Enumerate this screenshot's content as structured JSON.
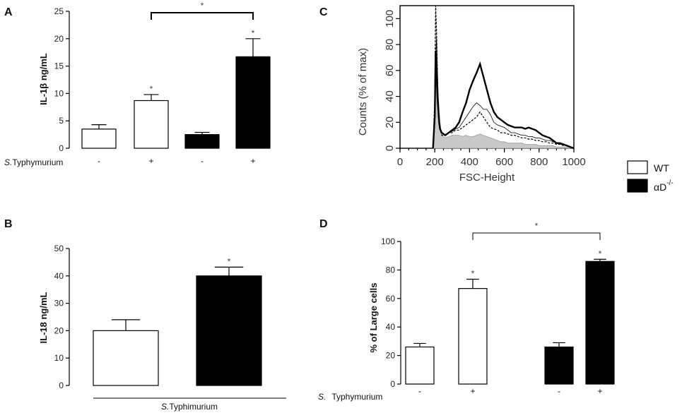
{
  "legend": {
    "items": [
      {
        "label": "WT",
        "color": "#ffffff"
      },
      {
        "label": "αD",
        "sup": "-/-",
        "color": "#000000"
      }
    ]
  },
  "chart_data": [
    {
      "panel": "A",
      "type": "bar",
      "ylabel": "IL-1β ng/mL",
      "ylim": [
        0,
        25
      ],
      "yticks": [
        "0",
        "5",
        "10",
        "15",
        "20",
        "25"
      ],
      "xlabel_prefix": "S.",
      "xlabel": "Typhymurium",
      "categories": [
        "-",
        "+",
        "-",
        "+"
      ],
      "bars": [
        {
          "value": 3.5,
          "error": 0.8,
          "group": "WT",
          "sig": ""
        },
        {
          "value": 8.7,
          "error": 1.1,
          "group": "WT",
          "sig": "*"
        },
        {
          "value": 2.5,
          "error": 0.4,
          "group": "αD-/-",
          "sig": ""
        },
        {
          "value": 16.7,
          "error": 3.3,
          "group": "αD-/-",
          "sig": "*"
        }
      ],
      "bracket": {
        "from": 1,
        "to": 3,
        "sig": "*"
      }
    },
    {
      "panel": "B",
      "type": "bar",
      "ylabel": "IL-18 ng/mL",
      "ylim": [
        0,
        50
      ],
      "yticks": [
        "0",
        "10",
        "20",
        "30",
        "40",
        "50"
      ],
      "xlabel_prefix": "S.",
      "xlabel": "Typhimurium",
      "bars": [
        {
          "value": 20,
          "error": 4.0,
          "group": "WT",
          "sig": ""
        },
        {
          "value": 40,
          "error": 3.2,
          "group": "αD-/-",
          "sig": "*"
        }
      ]
    },
    {
      "panel": "C",
      "type": "line",
      "xlabel": "FSC-Height",
      "ylabel": "Counts (% of max)",
      "xlim": [
        0,
        1000
      ],
      "ylim": [
        0,
        110
      ],
      "xticks": [
        "0",
        "200",
        "400",
        "600",
        "800",
        "1000"
      ],
      "yticks": [
        "0",
        "20",
        "40",
        "60",
        "80",
        "100"
      ],
      "x": [
        190,
        200,
        205,
        210,
        215,
        220,
        225,
        230,
        240,
        260,
        280,
        300,
        320,
        340,
        360,
        380,
        400,
        420,
        440,
        460,
        480,
        500,
        520,
        540,
        560,
        580,
        600,
        620,
        640,
        660,
        680,
        700,
        720,
        740,
        760,
        780,
        800,
        820,
        840,
        860,
        880,
        900,
        920,
        940,
        960,
        980,
        1000
      ],
      "series": [
        {
          "name": "shaded",
          "values": [
            0,
            20,
            105,
            90,
            50,
            40,
            30,
            20,
            10,
            8,
            9,
            10,
            10,
            10,
            9,
            10,
            9,
            9,
            10,
            11,
            10,
            9,
            8,
            7,
            6,
            5,
            5,
            4,
            4,
            4,
            4,
            4,
            3,
            3,
            3,
            3,
            2,
            2,
            2,
            2,
            2,
            1,
            1,
            1,
            1,
            1,
            0
          ]
        },
        {
          "name": "dashed",
          "values": [
            0,
            40,
            110,
            90,
            60,
            30,
            20,
            15,
            10,
            10,
            12,
            12,
            14,
            14,
            16,
            18,
            20,
            22,
            24,
            28,
            24,
            20,
            16,
            15,
            14,
            12,
            12,
            11,
            10,
            10,
            9,
            8,
            8,
            7,
            7,
            6,
            6,
            5,
            5,
            4,
            4,
            3,
            3,
            2,
            2,
            1,
            0
          ]
        },
        {
          "name": "thin solid",
          "values": [
            0,
            30,
            70,
            85,
            60,
            40,
            25,
            16,
            12,
            10,
            12,
            13,
            15,
            16,
            20,
            24,
            28,
            32,
            35,
            33,
            30,
            30,
            26,
            20,
            18,
            17,
            16,
            14,
            12,
            12,
            11,
            10,
            10,
            9,
            9,
            8,
            8,
            7,
            6,
            6,
            5,
            4,
            3,
            3,
            2,
            1,
            0
          ]
        },
        {
          "name": "thick solid",
          "values": [
            0,
            25,
            75,
            60,
            40,
            30,
            20,
            15,
            12,
            10,
            12,
            14,
            16,
            20,
            28,
            35,
            45,
            52,
            58,
            65,
            55,
            45,
            35,
            28,
            24,
            22,
            20,
            18,
            17,
            16,
            16,
            16,
            15,
            16,
            15,
            14,
            12,
            10,
            9,
            8,
            6,
            4,
            4,
            3,
            2,
            1,
            0
          ]
        }
      ]
    },
    {
      "panel": "D",
      "type": "bar",
      "ylabel": "% of Large cells",
      "ylim": [
        0,
        100
      ],
      "yticks": [
        "0",
        "20",
        "40",
        "60",
        "80",
        "100"
      ],
      "xlabel_prefix": "S.",
      "xlabel": "Typhymurium",
      "categories": [
        "-",
        "+",
        "-",
        "+"
      ],
      "bars": [
        {
          "value": 26,
          "error": 2.5,
          "group": "WT",
          "sig": ""
        },
        {
          "value": 67,
          "error": 6.5,
          "group": "WT",
          "sig": "*"
        },
        {
          "value": 26,
          "error": 3.0,
          "group": "αD-/-",
          "sig": ""
        },
        {
          "value": 86,
          "error": 1.5,
          "group": "αD-/-",
          "sig": "*"
        }
      ],
      "bracket": {
        "from": 1,
        "to": 3,
        "sig": "*"
      }
    }
  ]
}
